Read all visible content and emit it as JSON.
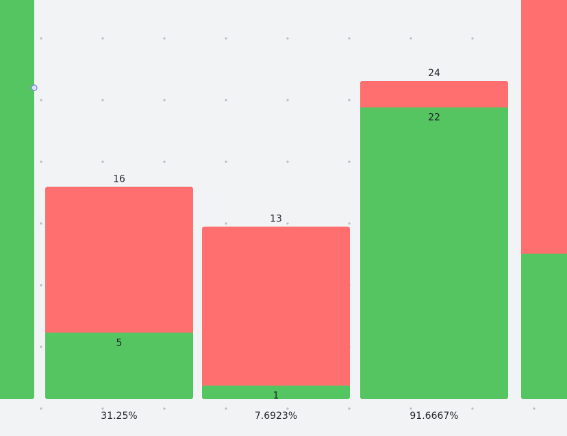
{
  "chart_data": {
    "type": "bar",
    "stacked": true,
    "grid": "dots",
    "colors": {
      "background": "#f2f3f5",
      "green": "#55c562",
      "red": "#ff6f6f",
      "grid_dot": "#b8bcc4",
      "handle": "#7b82e0"
    },
    "bars": [
      {
        "green": null,
        "total": null,
        "label": "",
        "partial": "left"
      },
      {
        "green": 5,
        "total": 16,
        "label": "31.25%"
      },
      {
        "green": 1,
        "total": 13,
        "label": "7.6923%"
      },
      {
        "green": 22,
        "total": 24,
        "label": "91.6667%"
      },
      {
        "green": null,
        "total": null,
        "label": "",
        "partial": "right"
      }
    ]
  }
}
